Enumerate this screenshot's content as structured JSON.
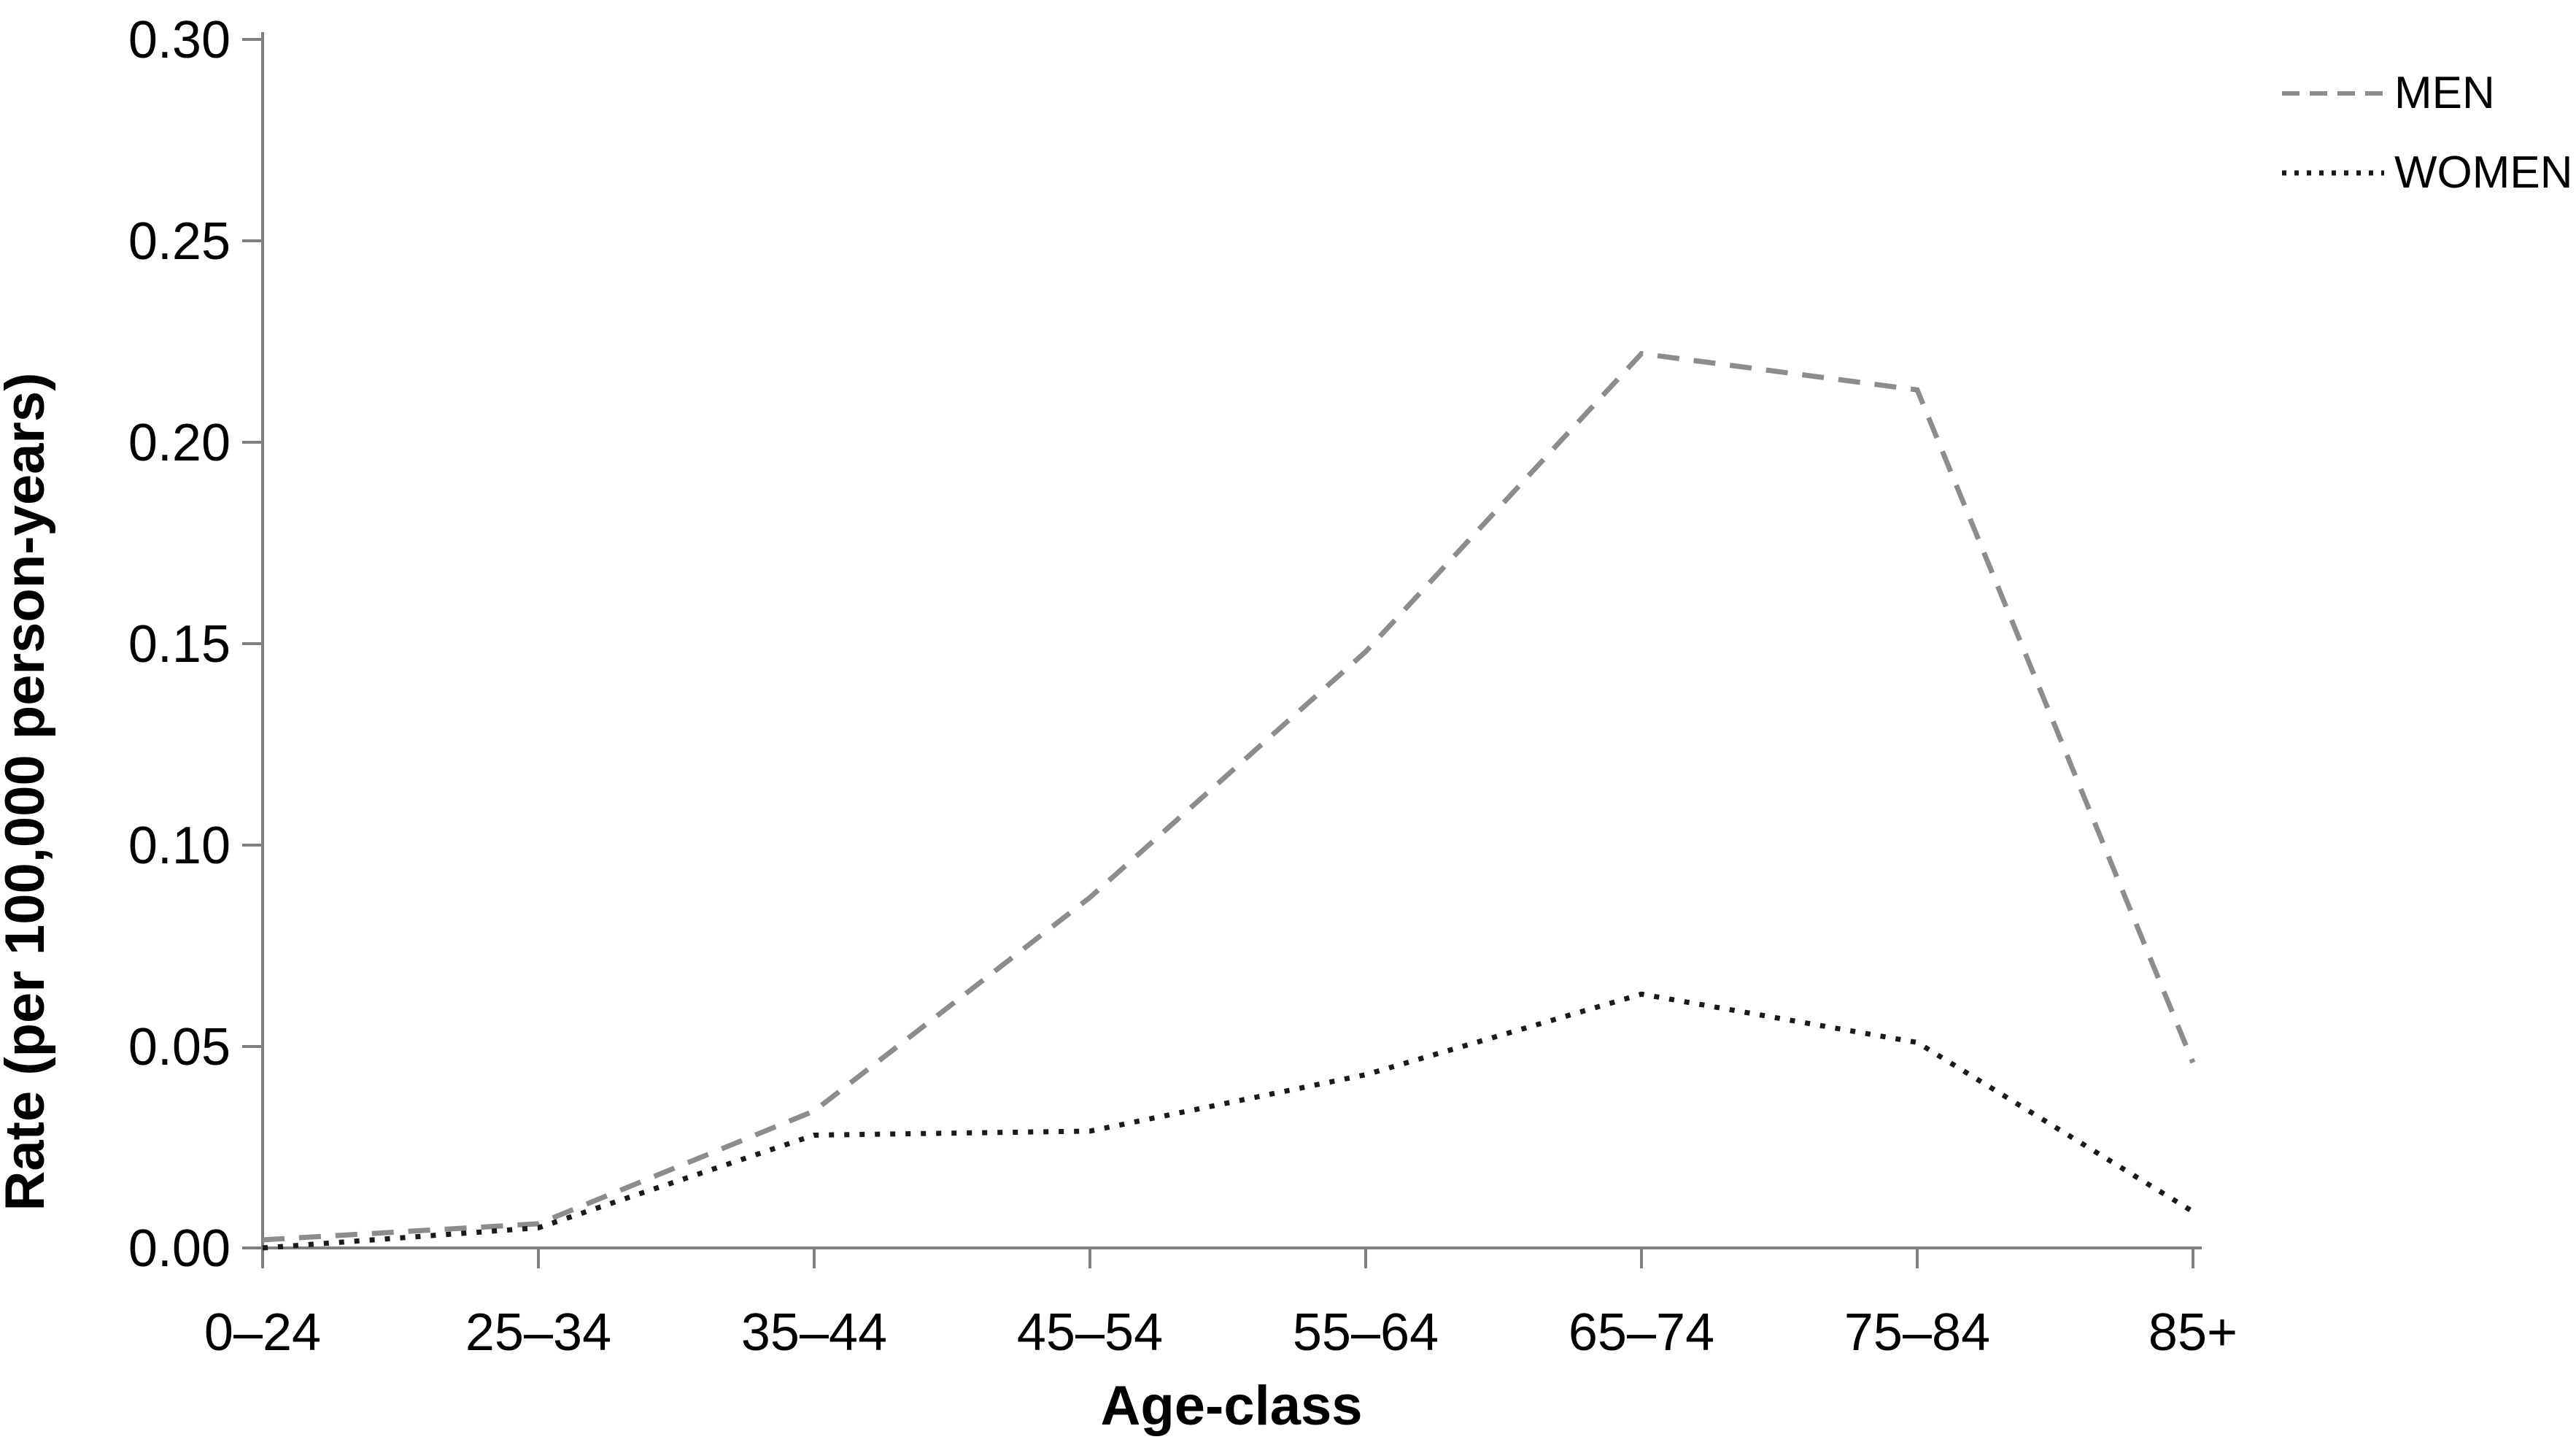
{
  "chart_data": {
    "type": "line",
    "title": "",
    "categories": [
      "0–24",
      "25–34",
      "35–44",
      "45–54",
      "55–64",
      "65–74",
      "75–84",
      "85+"
    ],
    "series": [
      {
        "name": "MEN",
        "style": "dashed",
        "color": "#8C8C8C",
        "values": [
          0.002,
          0.006,
          0.034,
          0.087,
          0.148,
          0.222,
          0.213,
          0.046
        ]
      },
      {
        "name": "WOMEN",
        "style": "dotted",
        "color": "#1A1A1A",
        "values": [
          0.0,
          0.005,
          0.028,
          0.029,
          0.043,
          0.063,
          0.051,
          0.009
        ]
      }
    ],
    "xlabel": "Age-class",
    "ylabel": "Rate (per 100,000 person-years)",
    "ylim": [
      0,
      0.3
    ],
    "ytick_step": 0.05,
    "ytick_labels": [
      "0.00",
      "0.05",
      "0.10",
      "0.15",
      "0.20",
      "0.25",
      "0.30"
    ],
    "grid": false,
    "legend_position": "top-right",
    "axis_color": "#7F7F7F"
  }
}
